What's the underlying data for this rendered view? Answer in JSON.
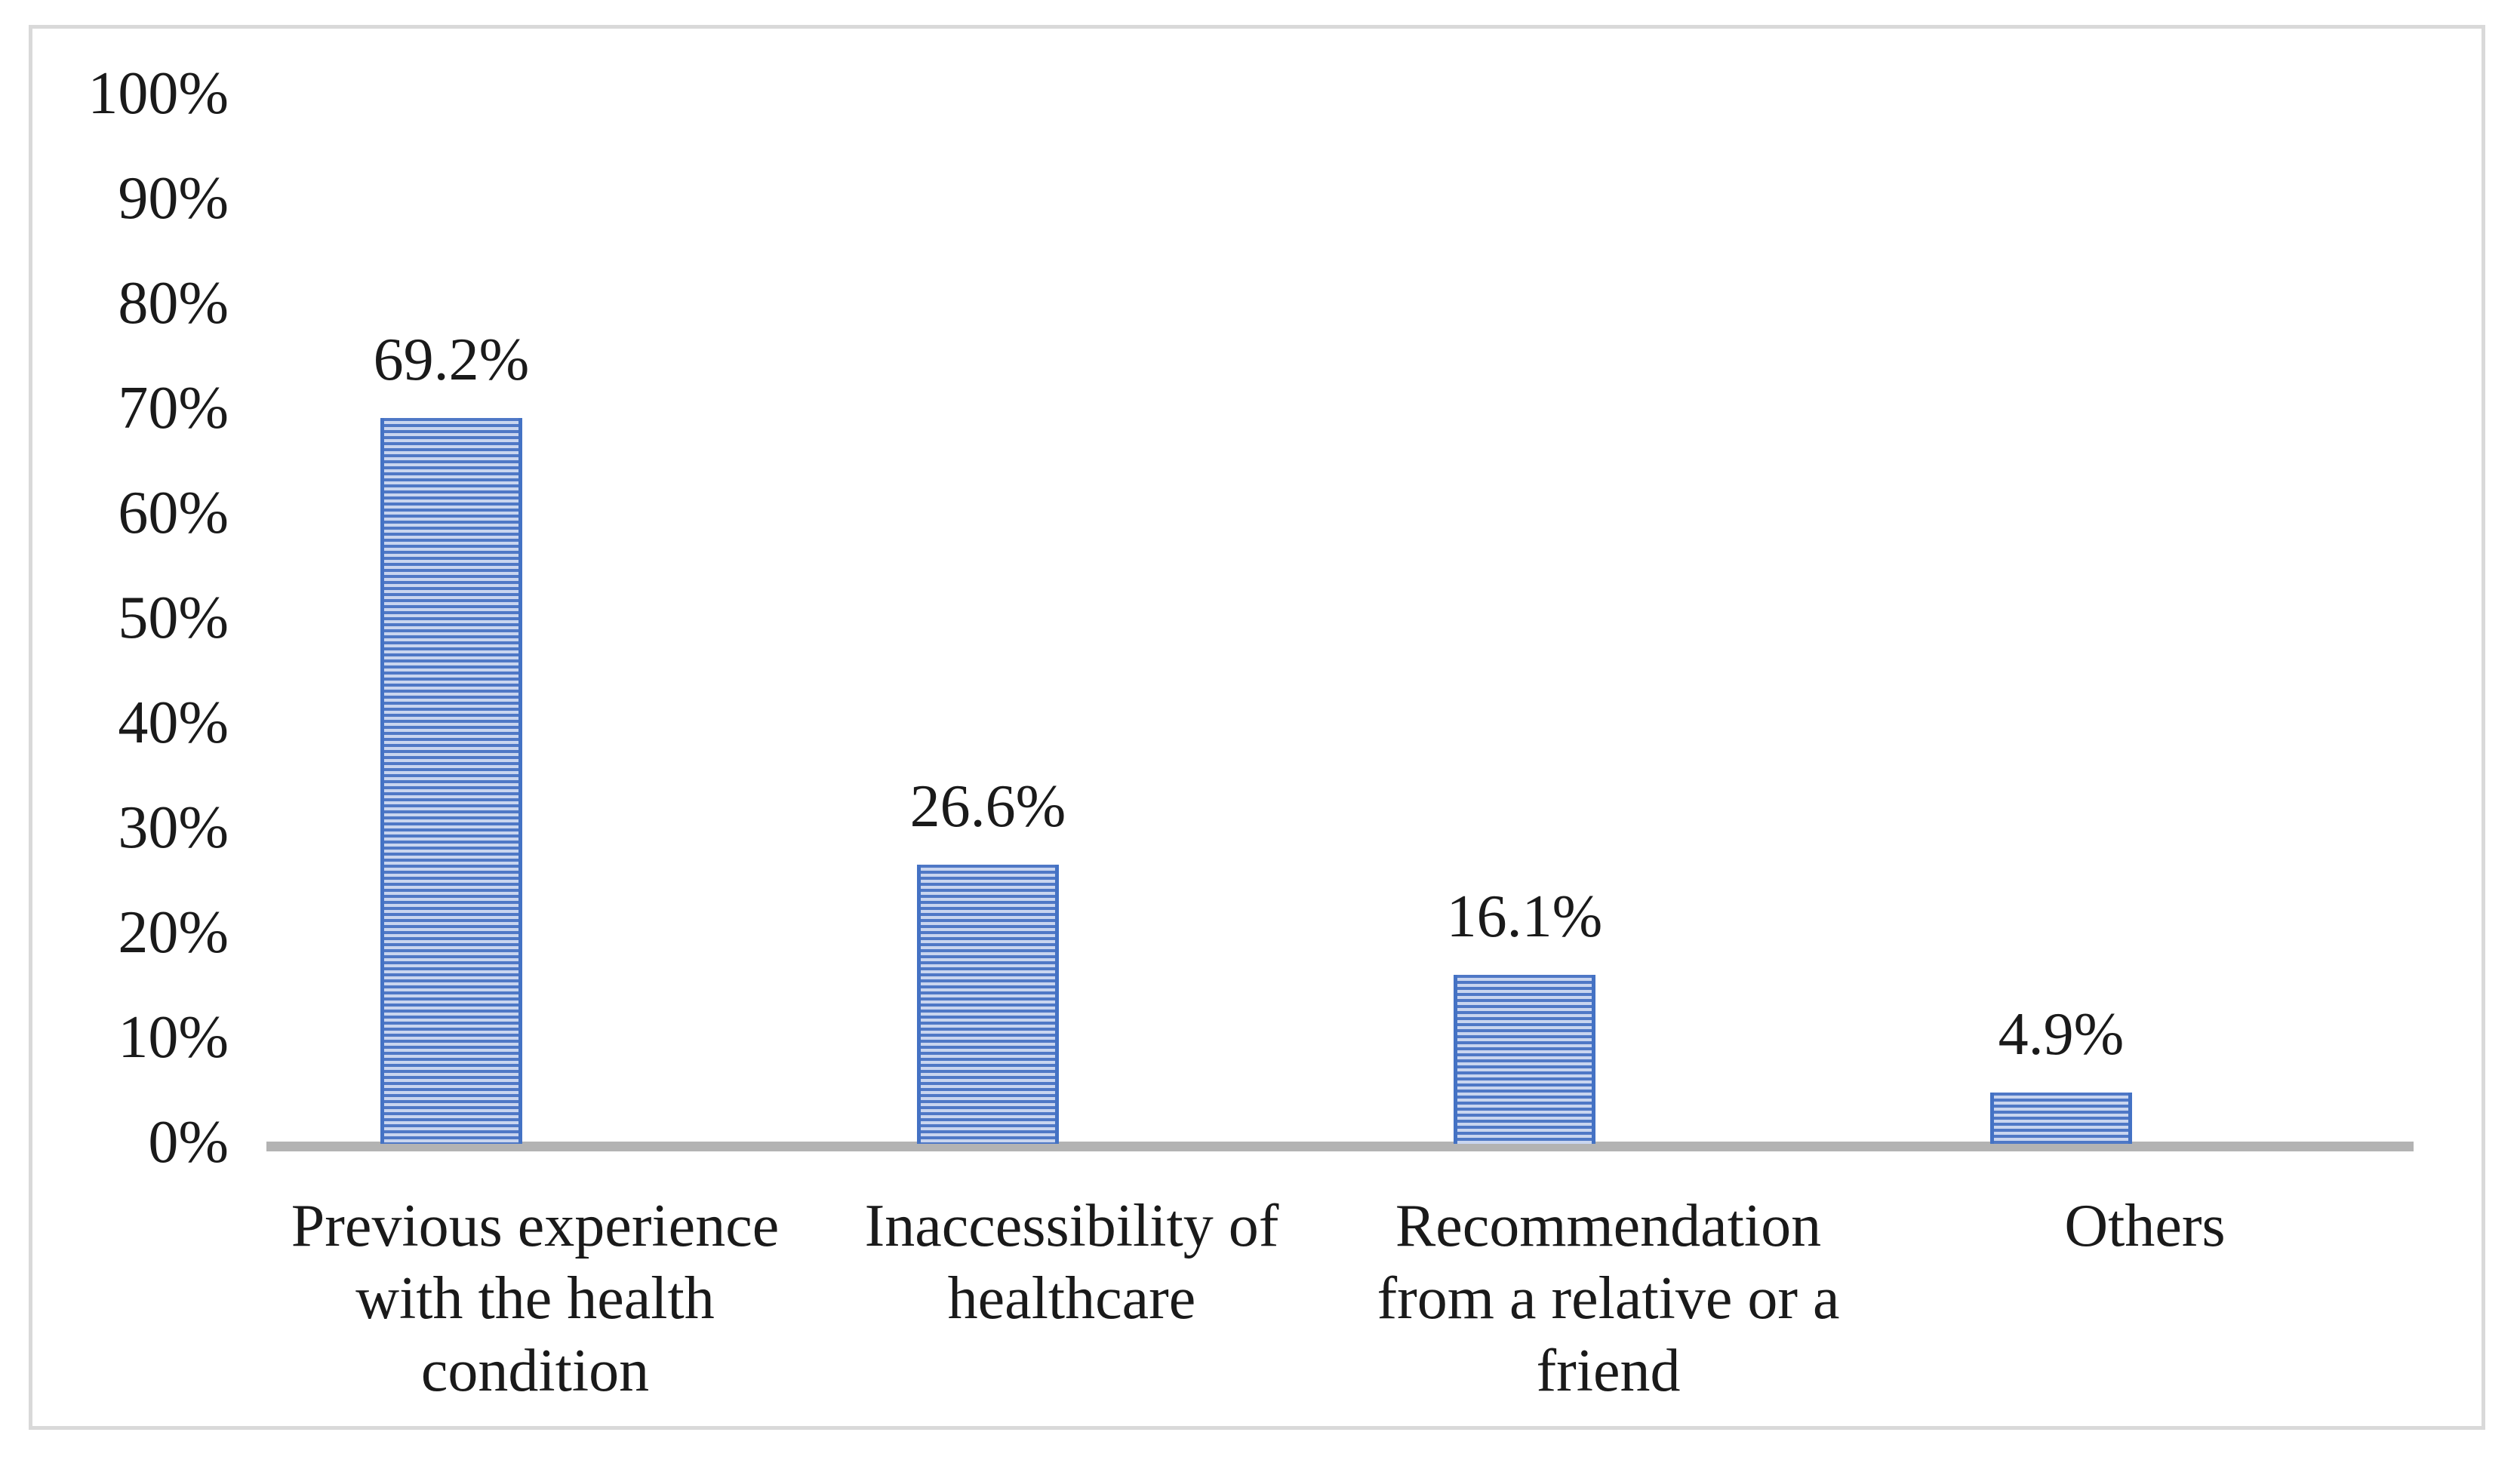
{
  "chart_data": {
    "type": "bar",
    "title": "",
    "xlabel": "",
    "ylabel": "",
    "grid": false,
    "legend": false,
    "categories": [
      "Previous experience with the health condition",
      "Inaccessibility of healthcare",
      "Recommendation from a relative or a friend",
      "Others"
    ],
    "values": [
      69.2,
      26.6,
      16.1,
      4.9
    ],
    "data_labels": [
      "69.2%",
      "26.6%",
      "16.1%",
      "4.9%"
    ],
    "y_axis": {
      "min": 0,
      "max": 100,
      "step": 10,
      "ticks": [
        "100%",
        "90%",
        "80%",
        "70%",
        "60%",
        "50%",
        "40%",
        "30%",
        "20%",
        "10%",
        "0%"
      ]
    },
    "colors": {
      "bar_stripe_dark": "#4f78c6",
      "bar_stripe_light": "#c9d5ef",
      "bar_edge": "#4472c4",
      "axis_line": "#b3b3b3",
      "frame_border": "#d9d9d9",
      "text": "#1a1a1a"
    },
    "bar_pattern": "horizontal-stripes"
  }
}
